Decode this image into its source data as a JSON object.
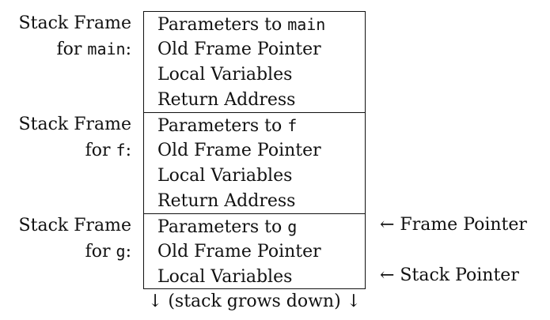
{
  "frames": [
    {
      "label_line1": "Stack Frame",
      "label_prefix": "for ",
      "label_func": "main",
      "label_suffix": ":",
      "rows": [
        {
          "text": "Parameters to ",
          "code": "main"
        },
        {
          "text": "Old Frame Pointer",
          "code": ""
        },
        {
          "text": "Local Variables",
          "code": ""
        },
        {
          "text": "Return Address",
          "code": ""
        }
      ]
    },
    {
      "label_line1": "Stack Frame",
      "label_prefix": "for ",
      "label_func": "f",
      "label_suffix": ":",
      "rows": [
        {
          "text": "Parameters to ",
          "code": "f"
        },
        {
          "text": "Old Frame Pointer",
          "code": ""
        },
        {
          "text": "Local Variables",
          "code": ""
        },
        {
          "text": "Return Address",
          "code": ""
        }
      ]
    },
    {
      "label_line1": "Stack Frame",
      "label_prefix": "for ",
      "label_func": "g",
      "label_suffix": ":",
      "rows": [
        {
          "text": "Parameters to ",
          "code": "g"
        },
        {
          "text": "Old Frame Pointer",
          "code": ""
        },
        {
          "text": "Local Variables",
          "code": ""
        }
      ]
    }
  ],
  "pointers": {
    "frame_pointer": "← Frame Pointer",
    "stack_pointer": "← Stack Pointer"
  },
  "footer": "↓ (stack grows down) ↓"
}
